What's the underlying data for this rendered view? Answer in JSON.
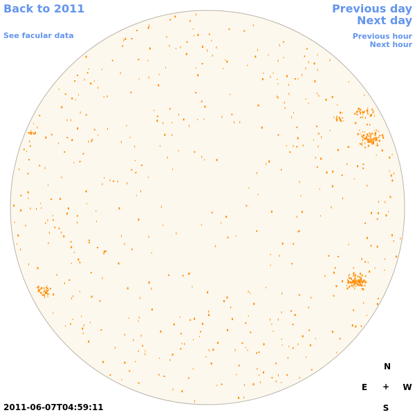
{
  "nav": {
    "back_label": "Back to 2011",
    "facular_label": "See facular data",
    "prev_day_label": "Previous day",
    "next_day_label": "Next day",
    "prev_hour_label": "Previous hour",
    "next_hour_label": "Next hour"
  },
  "timestamp": "2011-06-07T04:59:11",
  "compass": {
    "north": "N",
    "south": "S",
    "east": "E",
    "west": "W",
    "center": "+"
  },
  "colors": {
    "link": "#6495ed",
    "disk_fill": "#fdf8ee",
    "disk_edge": "#b9b2a8",
    "spot": "#ff8c00"
  }
}
